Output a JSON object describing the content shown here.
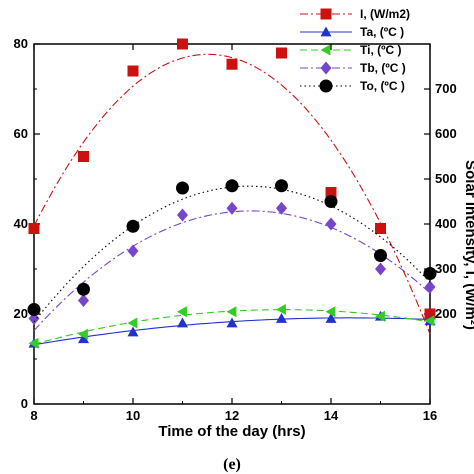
{
  "chart_data": {
    "type": "line",
    "x": [
      8,
      9,
      10,
      11,
      12,
      13,
      14,
      15,
      16
    ],
    "xlabel": "Time of the day (hrs)",
    "xlim": [
      8,
      16
    ],
    "xticks": [
      8,
      10,
      12,
      14,
      16
    ],
    "ylim_left": [
      0,
      80
    ],
    "yticks_left": [
      0,
      20,
      40,
      60,
      80
    ],
    "ylabel_right": "Solar Intensity, I, (W/m²)",
    "ylim_right": [
      0,
      800
    ],
    "yticks_right": [
      200,
      300,
      400,
      500,
      600,
      700
    ],
    "legend_position": "top-right",
    "grid": false,
    "series": [
      {
        "name": "I, (W/m2)",
        "axis": "right",
        "color": "#cc1111",
        "marker": "square",
        "line": "dash-dot",
        "values": [
          390,
          550,
          740,
          800,
          755,
          780,
          470,
          390,
          200
        ]
      },
      {
        "name": "Ta, (ºC )",
        "axis": "left",
        "color": "#2233cc",
        "marker": "triangle-up",
        "line": "solid",
        "values": [
          13.5,
          14.5,
          16,
          18,
          18,
          19,
          19,
          19.5,
          18.5
        ]
      },
      {
        "name": "Ti, (ºC )",
        "axis": "left",
        "color": "#33cc22",
        "marker": "triangle-left",
        "line": "dashed",
        "values": [
          13.5,
          15.5,
          18,
          20.5,
          20.5,
          21,
          20.5,
          19.5,
          18.5
        ]
      },
      {
        "name": "Tb, (ºC )",
        "axis": "left",
        "color": "#7744cc",
        "marker": "diamond",
        "line": "dash-dot",
        "values": [
          19,
          23,
          34,
          42,
          43.5,
          43.5,
          40,
          30,
          26
        ]
      },
      {
        "name": "To, (ºC )",
        "axis": "left",
        "color": "#000000",
        "marker": "circle",
        "line": "dotted",
        "values": [
          21,
          25.5,
          39.5,
          48,
          48.5,
          48.5,
          45,
          33,
          29
        ]
      }
    ]
  },
  "caption": "(e)"
}
